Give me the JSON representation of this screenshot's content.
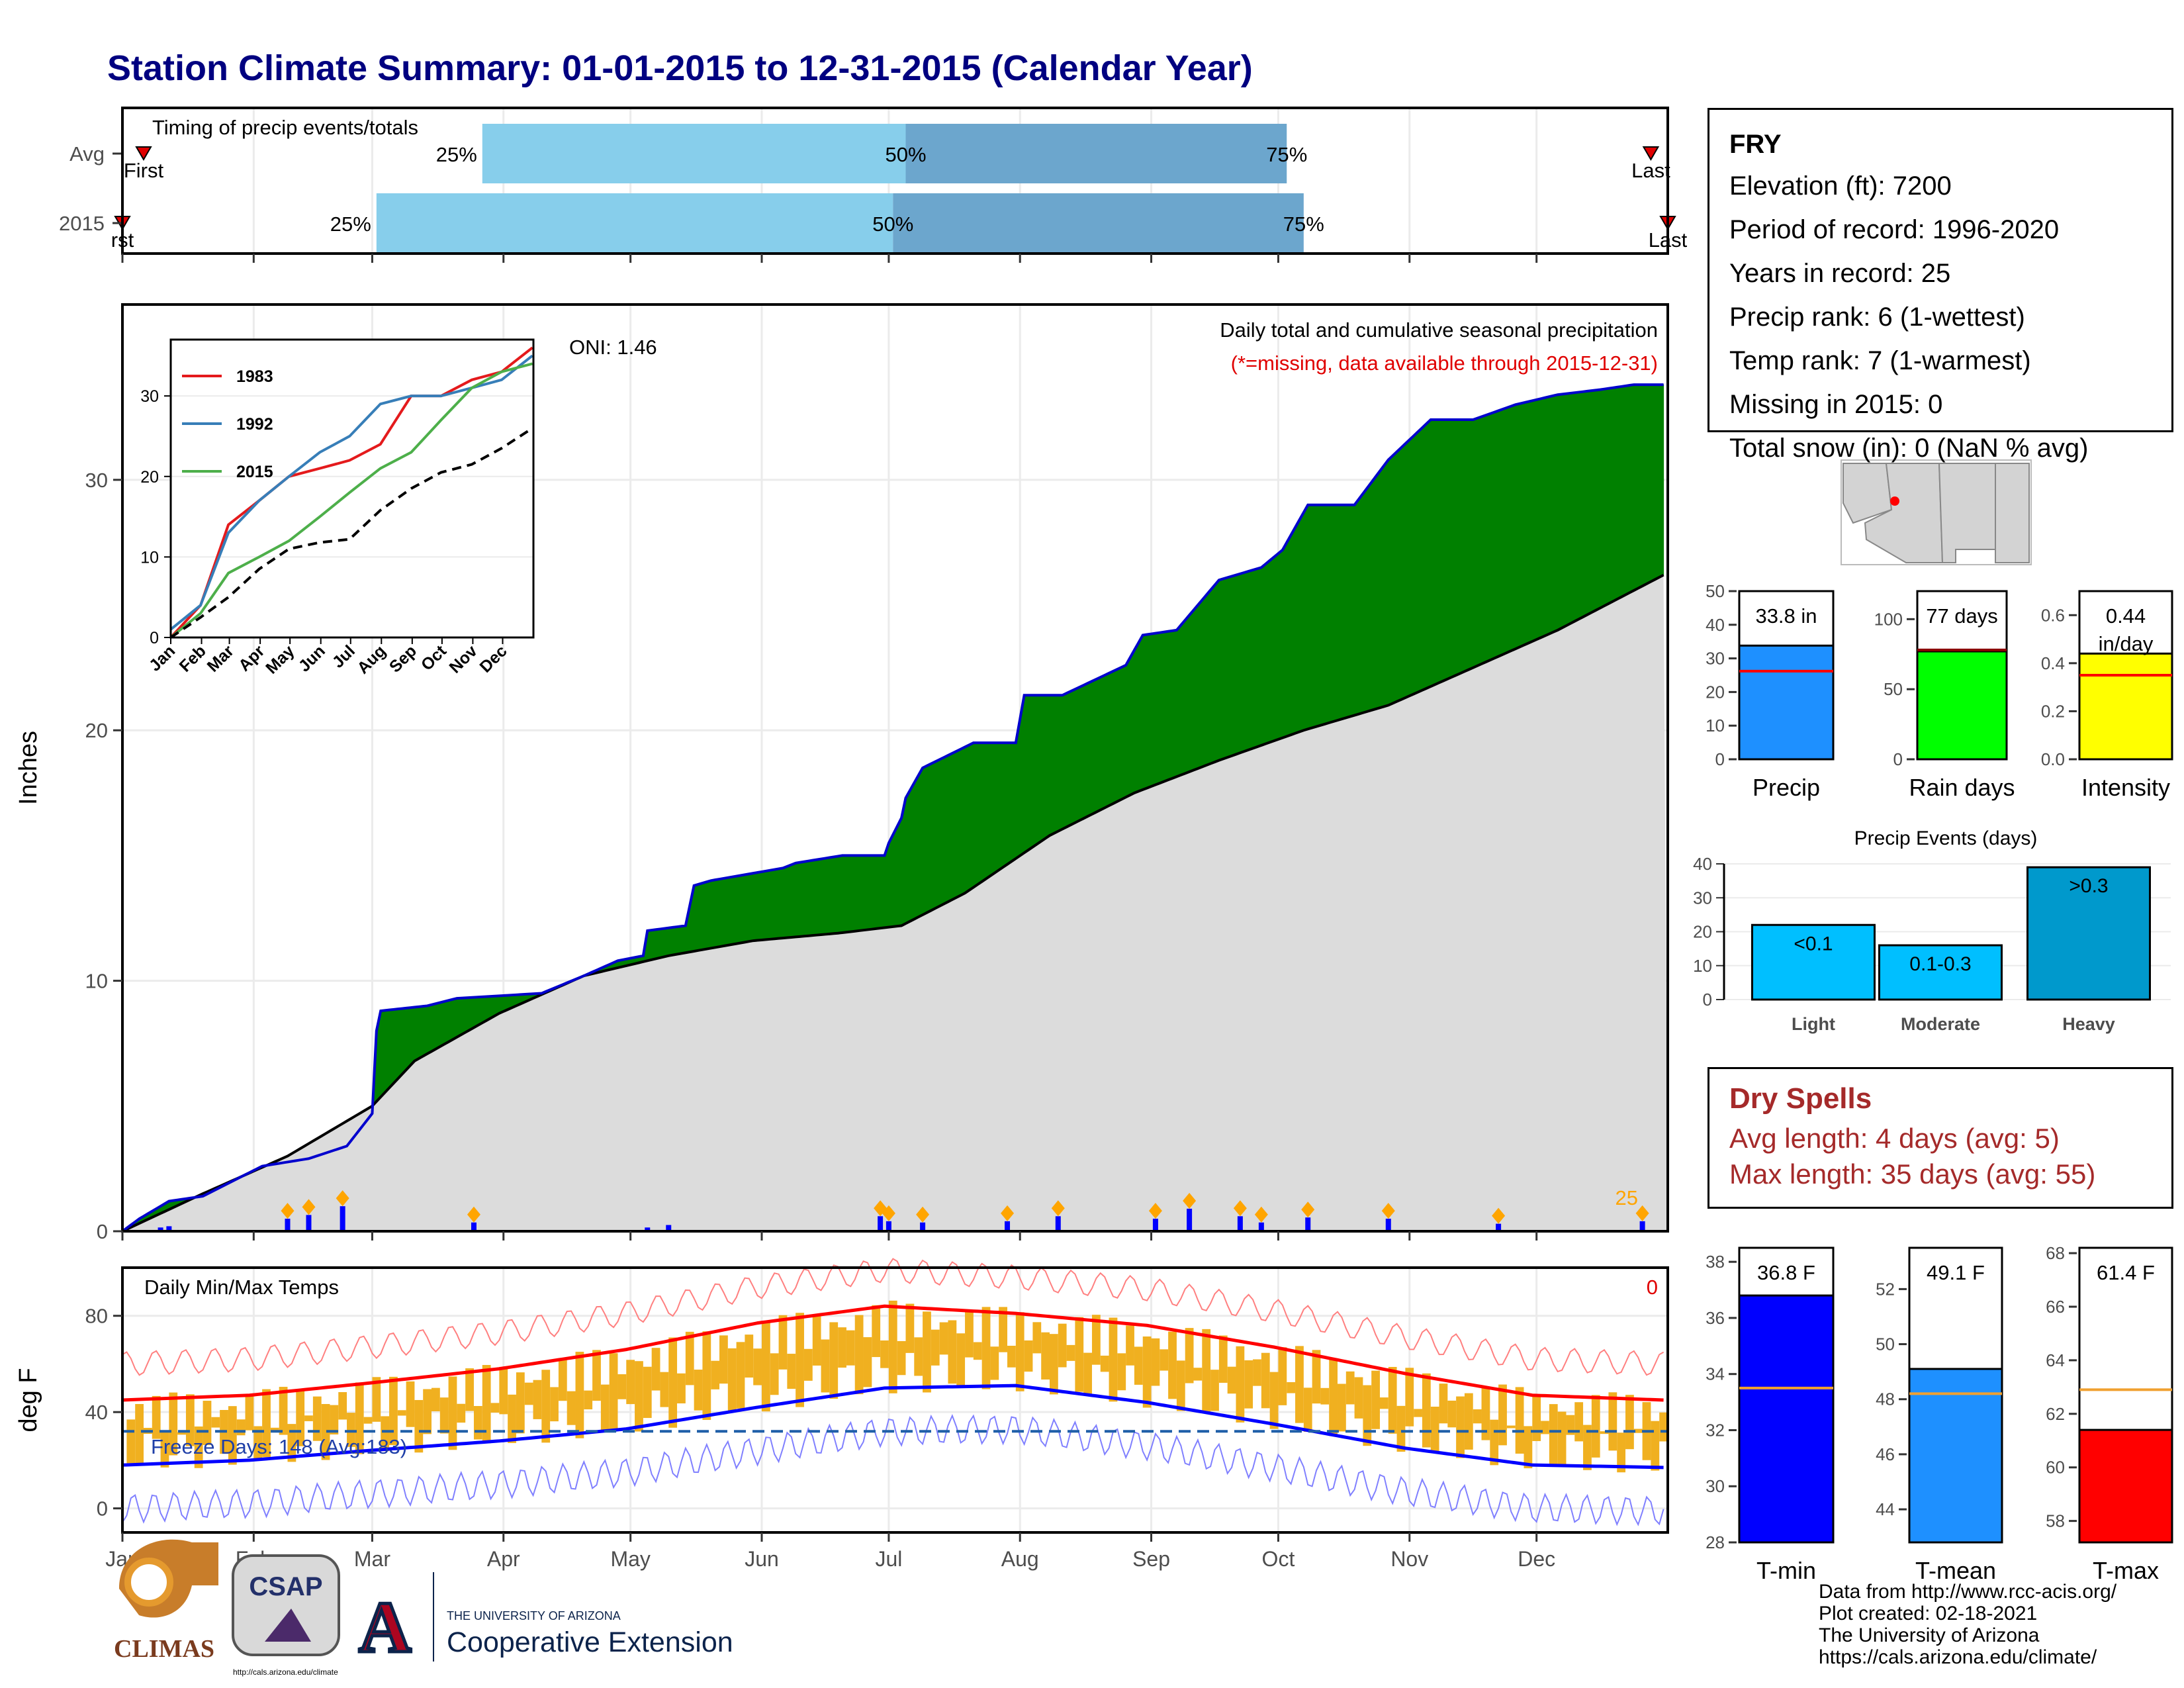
{
  "title": "Station Climate Summary: 01-01-2015 to 12-31-2015 (Calendar Year)",
  "colors": {
    "title": "#000080",
    "green": "#008000",
    "brown": "#7f5200",
    "avg_fill": "#dcdcdc",
    "light_blue": "#87ceeb",
    "steel_blue": "#6ca6cd",
    "precip_bar": "#1e90ff",
    "rain_bar": "#00ff00",
    "intensity_bar": "#ffff00",
    "event_bar": "#00bfff",
    "tmin": "#0000ff",
    "tmean": "#1e90ff",
    "tmax": "#ff0000",
    "dry": "#a52a2a",
    "orange": "#f0b020"
  },
  "timing": {
    "label": "Timing of precip events/totals",
    "rows": [
      {
        "name": "Avg",
        "first_doy": 6,
        "q25_doy": 86,
        "q50_doy": 186,
        "q75_doy": 276,
        "last_doy": 362,
        "first_label": "First",
        "last_label": "Last"
      },
      {
        "name": "2015",
        "first_doy": 1,
        "q25_doy": 61,
        "q50_doy": 183,
        "q75_doy": 280,
        "last_doy": 366,
        "first_label": "rst",
        "last_label": "Last"
      }
    ],
    "pct_labels": [
      "25%",
      "50%",
      "75%"
    ]
  },
  "main": {
    "annotation_title": "Daily total and cumulative seasonal precipitation",
    "annotation_missing": "(*=missing, data available through 2015-12-31)",
    "oni": "ONI: 1.46",
    "ylabel": "Inches",
    "count_label": "25"
  },
  "months": [
    "Jan",
    "Feb",
    "Mar",
    "Apr",
    "May",
    "Jun",
    "Jul",
    "Aug",
    "Sep",
    "Oct",
    "Nov",
    "Dec"
  ],
  "inset": {
    "legend": [
      "1983",
      "1992",
      "2015"
    ],
    "yticks": [
      "0",
      "10",
      "20",
      "30"
    ],
    "xticks": [
      "Jan",
      "Feb",
      "Mar",
      "Apr",
      "May",
      "Jun",
      "Jul",
      "Aug",
      "Sep",
      "Oct",
      "Nov",
      "Dec"
    ]
  },
  "temps": {
    "label": "Daily Min/Max Temps",
    "missing_count": "0",
    "freeze": "Freeze Days: 148 (Avg:183)",
    "ylabel": "deg F",
    "yticks": [
      "0",
      "40",
      "80"
    ]
  },
  "info": {
    "station": "FRY",
    "lines": [
      "Elevation (ft): 7200",
      "Period of record: 1996-2020",
      "Years in record: 25",
      "Precip rank: 6 (1-wettest)",
      "Temp rank: 7 (1-warmest)",
      "Missing in 2015: 0",
      "Total snow (in): 0 (NaN % avg)"
    ]
  },
  "dry": {
    "title": "Dry Spells",
    "avg": "Avg length: 4 days (avg: 5)",
    "max": "Max length: 35 days (avg: 55)"
  },
  "credits": [
    "Data from http://www.rcc-acis.org/",
    "Plot created: 02-18-2021",
    "The University of Arizona",
    "https://cals.arizona.edu/climate/"
  ],
  "logos": {
    "climas": "CLIMAS",
    "csap": "CSAP",
    "csap_url": "http://cals.arizona.edu/climate",
    "ua_top": "THE UNIVERSITY OF ARIZONA",
    "ua_main": "Cooperative Extension"
  },
  "chart_data": [
    {
      "type": "area",
      "title": "Daily total and cumulative seasonal precipitation",
      "ylabel": "Inches",
      "ylim": [
        0,
        37
      ],
      "x_label_units": "day of year",
      "series": [
        {
          "name": "2015",
          "x": [
            1,
            5,
            12,
            20,
            34,
            45,
            54,
            60,
            61,
            62,
            73,
            80,
            100,
            110,
            118,
            124,
            125,
            134,
            136,
            140,
            157,
            160,
            171,
            181,
            182,
            185,
            186,
            188,
            190,
            202,
            212,
            214,
            223,
            238,
            242,
            250,
            260,
            270,
            275,
            281,
            292,
            300,
            305,
            310,
            320,
            330,
            340,
            350,
            358,
            365
          ],
          "y": [
            0,
            0.5,
            1.2,
            1.4,
            2.6,
            2.9,
            3.4,
            4.7,
            8.0,
            8.8,
            9.0,
            9.3,
            9.5,
            10.2,
            10.8,
            11.0,
            12.0,
            12.2,
            13.8,
            14.0,
            14.5,
            14.7,
            15.0,
            15.0,
            15.5,
            16.5,
            17.3,
            17.9,
            18.5,
            19.5,
            19.5,
            21.4,
            21.4,
            22.6,
            23.8,
            24.0,
            26.0,
            26.5,
            27.2,
            29.0,
            29.0,
            30.8,
            31.6,
            32.4,
            32.4,
            33.0,
            33.4,
            33.6,
            33.8,
            33.8
          ]
        },
        {
          "name": "Avg",
          "x": [
            1,
            20,
            40,
            60,
            70,
            90,
            110,
            130,
            150,
            170,
            185,
            200,
            220,
            240,
            260,
            280,
            300,
            320,
            340,
            365
          ],
          "y": [
            0,
            1.5,
            3.0,
            5.0,
            6.8,
            8.7,
            10.2,
            11.0,
            11.6,
            11.9,
            12.2,
            13.5,
            15.8,
            17.5,
            18.8,
            20.0,
            21.0,
            22.5,
            24.0,
            26.2
          ]
        }
      ],
      "daily_precip": {
        "x": [
          10,
          12,
          40,
          45,
          53,
          84,
          125,
          130,
          180,
          182,
          190,
          210,
          222,
          245,
          253,
          265,
          270,
          281,
          300,
          326,
          360
        ],
        "y": [
          0.15,
          0.2,
          0.5,
          0.65,
          1.0,
          0.35,
          0.15,
          0.25,
          0.6,
          0.4,
          0.35,
          0.4,
          0.6,
          0.5,
          0.9,
          0.6,
          0.35,
          0.55,
          0.5,
          0.3,
          0.4
        ]
      }
    },
    {
      "type": "line",
      "title": "",
      "ylim": [
        0,
        37
      ],
      "categories": [
        "Jan",
        "Feb",
        "Mar",
        "Apr",
        "May",
        "Jun",
        "Jul",
        "Aug",
        "Sep",
        "Oct",
        "Nov",
        "Dec"
      ],
      "series": [
        {
          "name": "1983",
          "x": [
            1,
            31,
            59,
            90,
            120,
            151,
            181,
            212,
            243,
            273,
            304,
            334,
            365
          ],
          "y": [
            0,
            4,
            14,
            17,
            20,
            21,
            22,
            24,
            30,
            30,
            32,
            33,
            36
          ]
        },
        {
          "name": "1992",
          "x": [
            1,
            31,
            59,
            90,
            120,
            151,
            181,
            212,
            243,
            273,
            304,
            334,
            365
          ],
          "y": [
            1,
            4,
            13,
            17,
            20,
            23,
            25,
            29,
            30,
            30,
            31,
            32,
            35
          ]
        },
        {
          "name": "2015",
          "x": [
            1,
            31,
            59,
            90,
            120,
            151,
            181,
            212,
            243,
            273,
            304,
            334,
            365
          ],
          "y": [
            0,
            3,
            8,
            10,
            12,
            15,
            18,
            21,
            23,
            27,
            31,
            33,
            34
          ]
        },
        {
          "name": "Avg",
          "x": [
            1,
            31,
            59,
            90,
            120,
            151,
            181,
            212,
            243,
            273,
            304,
            334,
            365
          ],
          "y": [
            0,
            2.5,
            5,
            8.5,
            11,
            11.8,
            12.2,
            15.8,
            18.5,
            20.5,
            21.5,
            23.5,
            26
          ]
        }
      ]
    },
    {
      "type": "line",
      "title": "Daily Min/Max Temps",
      "ylabel": "deg F",
      "ylim": [
        -10,
        100
      ],
      "series": [
        {
          "name": "avg_max",
          "x": [
            1,
            31,
            59,
            90,
            120,
            151,
            181,
            212,
            243,
            273,
            304,
            334,
            365
          ],
          "y": [
            45,
            47,
            52,
            58,
            66,
            77,
            84,
            81,
            76,
            67,
            56,
            47,
            45
          ]
        },
        {
          "name": "avg_min",
          "x": [
            1,
            31,
            59,
            90,
            120,
            151,
            181,
            212,
            243,
            273,
            304,
            334,
            365
          ],
          "y": [
            18,
            20,
            24,
            28,
            33,
            42,
            50,
            51,
            44,
            35,
            25,
            18,
            17
          ]
        },
        {
          "name": "freeze_line",
          "y": [
            32,
            32
          ]
        }
      ]
    },
    {
      "type": "bar",
      "categories": [
        "Precip"
      ],
      "values": [
        33.8
      ],
      "avg": 26.2,
      "ylim": [
        0,
        50
      ],
      "label": "33.8 in",
      "yticks": [
        "0",
        "10",
        "20",
        "30",
        "40",
        "50"
      ]
    },
    {
      "type": "bar",
      "categories": [
        "Rain days"
      ],
      "values": [
        77
      ],
      "avg": 78,
      "ylim": [
        0,
        120
      ],
      "label": "77 days",
      "yticks": [
        "0",
        "50",
        "100"
      ]
    },
    {
      "type": "bar",
      "categories": [
        "Intensity"
      ],
      "values": [
        0.44
      ],
      "avg": 0.35,
      "ylim": [
        0,
        0.7
      ],
      "label": "0.44 in/day",
      "yticks": [
        "0.0",
        "0.2",
        "0.4",
        "0.6"
      ]
    },
    {
      "type": "bar",
      "title": "Precip Events (days)",
      "categories": [
        "Light",
        "Moderate",
        "Heavy"
      ],
      "values": [
        22,
        16,
        39
      ],
      "bar_labels": [
        "<0.1",
        "0.1-0.3",
        ">0.3"
      ],
      "ylim": [
        0,
        40
      ],
      "yticks": [
        "0",
        "10",
        "20",
        "30",
        "40"
      ]
    },
    {
      "type": "bar",
      "categories": [
        "T-min"
      ],
      "values": [
        36.8
      ],
      "avg": 33.5,
      "ylim": [
        28,
        38.5
      ],
      "label": "36.8 F",
      "yticks": [
        "28",
        "30",
        "32",
        "34",
        "36",
        "38"
      ]
    },
    {
      "type": "bar",
      "categories": [
        "T-mean"
      ],
      "values": [
        49.1
      ],
      "avg": 48.2,
      "ylim": [
        42.8,
        53.5
      ],
      "label": "49.1 F",
      "yticks": [
        "44",
        "46",
        "48",
        "50",
        "52"
      ]
    },
    {
      "type": "bar",
      "categories": [
        "T-max"
      ],
      "values": [
        61.4
      ],
      "avg": 62.9,
      "ylim": [
        57.2,
        68.2
      ],
      "label": "61.4 F",
      "yticks": [
        "58",
        "60",
        "62",
        "64",
        "66",
        "68"
      ]
    }
  ]
}
